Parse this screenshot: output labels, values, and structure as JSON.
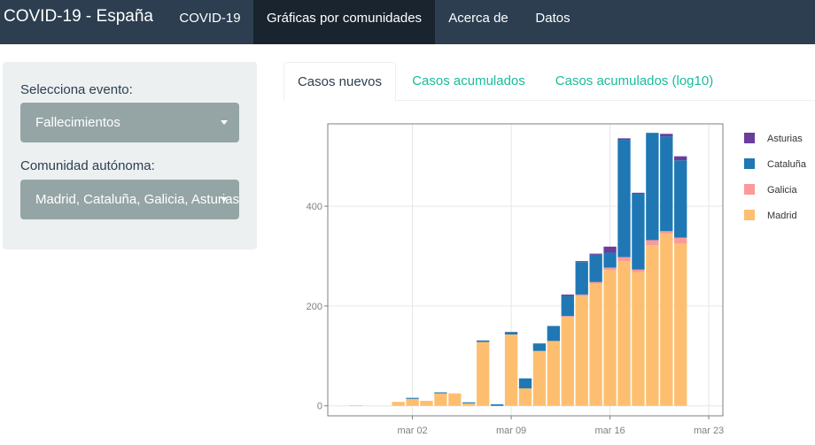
{
  "navbar": {
    "brand": "COVID-19 - España",
    "items": [
      {
        "label": "COVID-19",
        "active": false
      },
      {
        "label": "Gráficas por comunidades",
        "active": true
      },
      {
        "label": "Acerca de",
        "active": false
      },
      {
        "label": "Datos",
        "active": false
      }
    ]
  },
  "sidebar": {
    "event_label": "Selecciona evento:",
    "event_value": "Fallecimientos",
    "community_label": "Comunidad autónoma:",
    "community_value": "Madrid, Cataluña, Galicia, Asturias"
  },
  "tabs": [
    {
      "label": "Casos nuevos",
      "active": true
    },
    {
      "label": "Casos acumulados",
      "active": false
    },
    {
      "label": "Casos acumulados (log10)",
      "active": false
    }
  ],
  "chart_data": {
    "type": "bar",
    "stacked": true,
    "title": "",
    "xlabel": "",
    "ylabel": "",
    "ylim": [
      -20,
      565
    ],
    "yticks": [
      0,
      200,
      400
    ],
    "xlim": [
      "2020-02-25",
      "2020-03-24"
    ],
    "xticks": [
      {
        "date": "2020-03-02",
        "label": "mar 02"
      },
      {
        "date": "2020-03-09",
        "label": "mar 09"
      },
      {
        "date": "2020-03-16",
        "label": "mar 16"
      },
      {
        "date": "2020-03-23",
        "label": "mar 23"
      }
    ],
    "grid": true,
    "legend_position": "right",
    "categories": [
      "2020-02-27",
      "2020-02-28",
      "2020-02-29",
      "2020-03-01",
      "2020-03-02",
      "2020-03-03",
      "2020-03-04",
      "2020-03-05",
      "2020-03-06",
      "2020-03-07",
      "2020-03-08",
      "2020-03-09",
      "2020-03-10",
      "2020-03-11",
      "2020-03-12",
      "2020-03-13",
      "2020-03-14",
      "2020-03-15",
      "2020-03-16",
      "2020-03-17",
      "2020-03-18",
      "2020-03-19",
      "2020-03-20",
      "2020-03-21",
      "2020-03-22"
    ],
    "series": [
      {
        "name": "Madrid",
        "color": "#fdbf6f",
        "values": [
          1,
          0,
          0,
          8,
          14,
          10,
          25,
          25,
          5,
          128,
          0,
          143,
          35,
          110,
          130,
          178,
          220,
          245,
          272,
          290,
          268,
          322,
          345,
          325,
          0
        ]
      },
      {
        "name": "Galicia",
        "color": "#fb9a99",
        "values": [
          0,
          0,
          0,
          0,
          0,
          0,
          0,
          0,
          0,
          0,
          0,
          0,
          0,
          0,
          0,
          2,
          3,
          3,
          5,
          8,
          5,
          10,
          5,
          12,
          0
        ]
      },
      {
        "name": "Cataluña",
        "color": "#1f78b4",
        "values": [
          0,
          0,
          0,
          0,
          2,
          0,
          2,
          0,
          2,
          3,
          3,
          5,
          20,
          15,
          30,
          40,
          65,
          55,
          30,
          235,
          152,
          215,
          190,
          155,
          0
        ]
      },
      {
        "name": "Asturias",
        "color": "#6a3d9a",
        "values": [
          0,
          0,
          0,
          0,
          0,
          0,
          0,
          0,
          0,
          0,
          0,
          0,
          0,
          0,
          0,
          3,
          2,
          2,
          12,
          3,
          2,
          0,
          5,
          8,
          0
        ]
      }
    ]
  }
}
